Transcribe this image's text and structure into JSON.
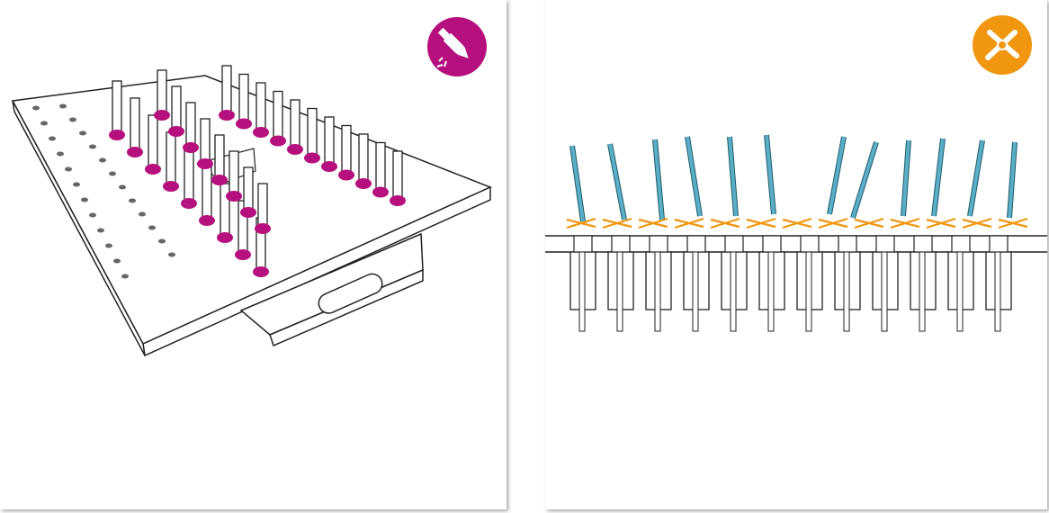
{
  "left_panel": {
    "badge": {
      "icon": "glue-applicator-icon",
      "color": "#b5107d"
    },
    "illustration": "pin-board-with-glued-pins",
    "accent_color": "#b5107d"
  },
  "right_panel": {
    "badge": {
      "icon": "side-cutter-icon",
      "color": "#f0960f"
    },
    "illustration": "pins-cut-above-board",
    "pin_color": "#5aaec6",
    "cut_mark_color": "#f0960f"
  }
}
